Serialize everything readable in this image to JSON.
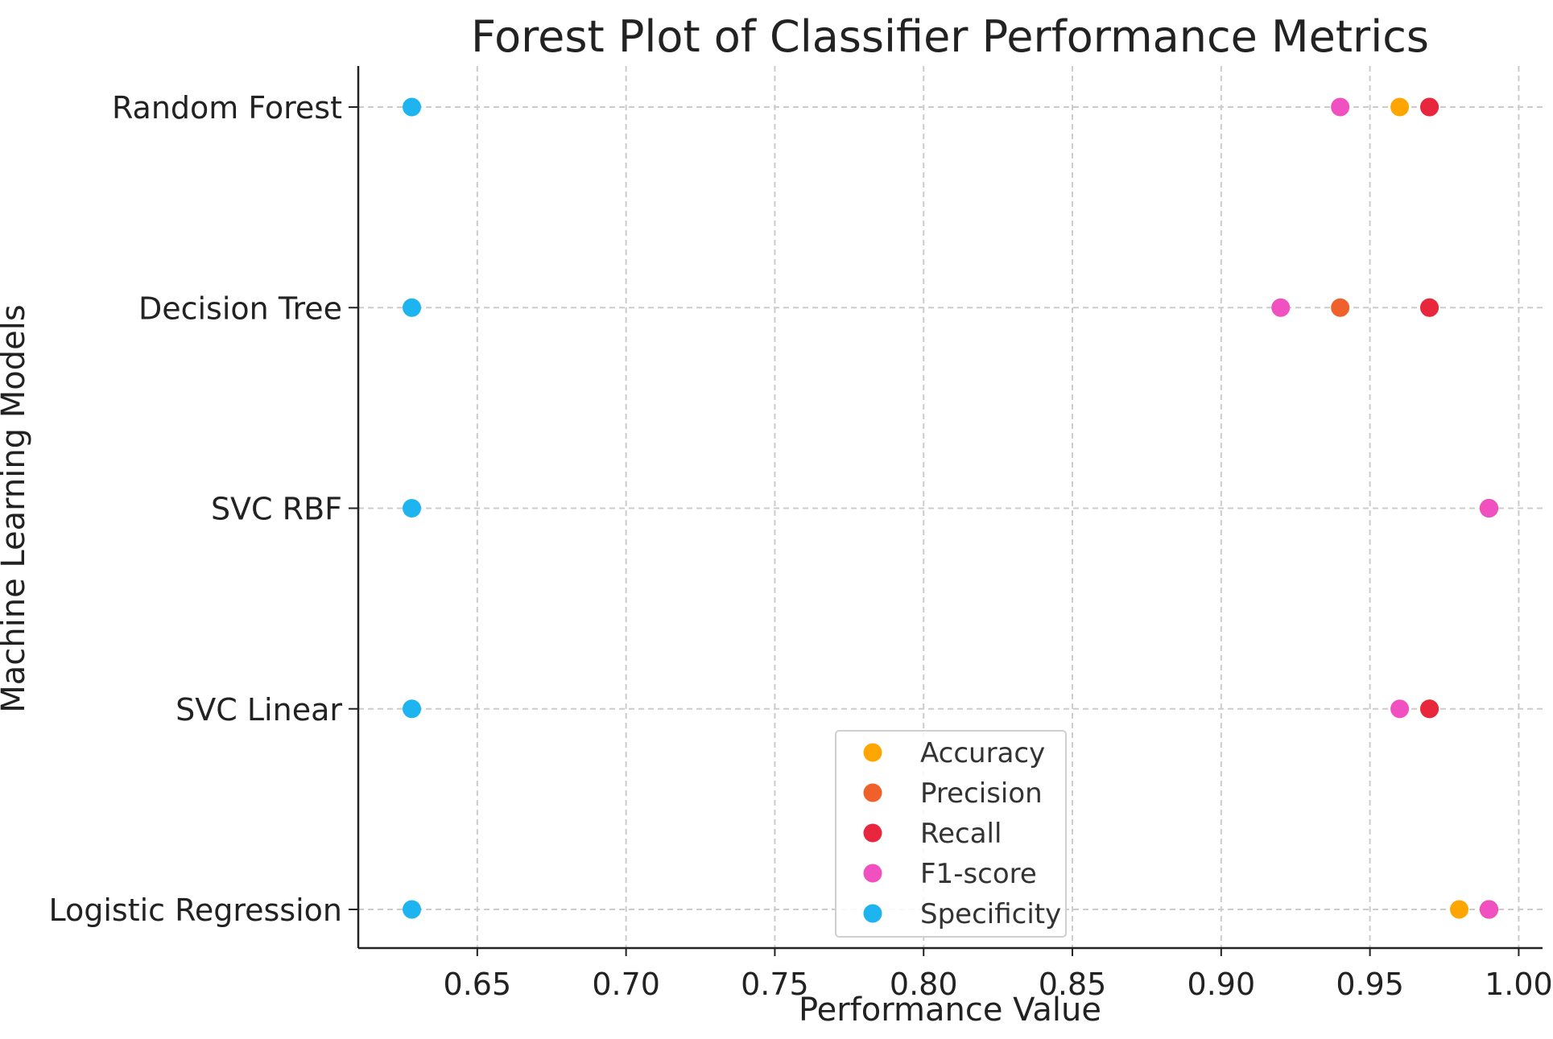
{
  "chart_data": {
    "type": "scatter",
    "title": "Forest Plot of Classifier Performance Metrics",
    "xlabel": "Performance Value",
    "ylabel": "Machine Learning Models",
    "xlim": [
      0.61,
      1.008
    ],
    "xticks": [
      "0.65",
      "0.70",
      "0.75",
      "0.80",
      "0.85",
      "0.90",
      "0.95",
      "1.00"
    ],
    "xtick_values": [
      0.65,
      0.7,
      0.75,
      0.8,
      0.85,
      0.9,
      0.95,
      1.0
    ],
    "categories": [
      "Logistic Regression",
      "SVC Linear",
      "SVC RBF",
      "Decision Tree",
      "Random Forest"
    ],
    "grid": true,
    "legend_position": "bottom-center",
    "series": [
      {
        "name": "Accuracy",
        "color": "#FFA500",
        "values": [
          0.98,
          0.97,
          0.99,
          0.97,
          0.96
        ]
      },
      {
        "name": "Precision",
        "color": "#F0602A",
        "values": [
          0.99,
          0.97,
          0.99,
          0.94,
          0.97
        ]
      },
      {
        "name": "Recall",
        "color": "#E8273F",
        "values": [
          0.99,
          0.97,
          0.99,
          0.97,
          0.97
        ]
      },
      {
        "name": "F1-score",
        "color": "#F050C0",
        "values": [
          0.99,
          0.96,
          0.99,
          0.92,
          0.94
        ]
      },
      {
        "name": "Specificity",
        "color": "#1EB4F0",
        "values": [
          0.628,
          0.628,
          0.628,
          0.628,
          0.628
        ]
      }
    ]
  }
}
